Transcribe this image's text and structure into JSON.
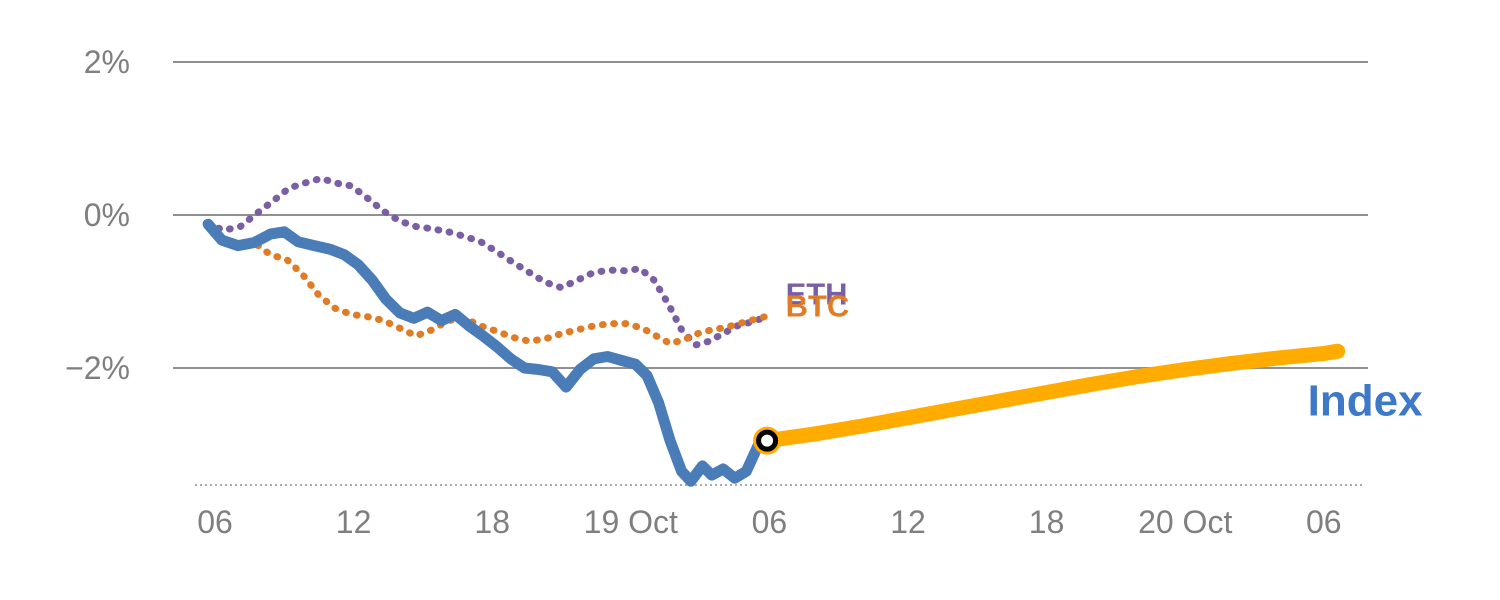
{
  "chart_data": {
    "type": "line",
    "title": "",
    "x_axis": {
      "unit": "hours",
      "range": [
        4.2,
        56
      ],
      "ticks": [
        {
          "value": 6,
          "label": "06"
        },
        {
          "value": 12,
          "label": "12"
        },
        {
          "value": 18,
          "label": "18"
        },
        {
          "value": 24,
          "label": "19 Oct"
        },
        {
          "value": 30,
          "label": "06"
        },
        {
          "value": 36,
          "label": "12"
        },
        {
          "value": 42,
          "label": "18"
        },
        {
          "value": 48,
          "label": "20 Oct"
        },
        {
          "value": 54,
          "label": "06"
        }
      ],
      "baseline_value": -3.53
    },
    "y_axis": {
      "unit": "%",
      "range": [
        -3.53,
        2.3
      ],
      "gridlines": [
        2,
        0,
        -2
      ],
      "ticks": [
        {
          "value": 2,
          "label": "2%"
        },
        {
          "value": 0,
          "label": "0%"
        },
        {
          "value": -2,
          "label": "−2%"
        }
      ]
    },
    "series": [
      {
        "name": "ETH",
        "color": "#7b5fa5",
        "style": "dotted",
        "width": 7,
        "points": [
          [
            5.7,
            -0.12
          ],
          [
            6.4,
            -0.2
          ],
          [
            7.1,
            -0.15
          ],
          [
            7.8,
            0.02
          ],
          [
            8.5,
            0.18
          ],
          [
            9.2,
            0.35
          ],
          [
            9.9,
            0.42
          ],
          [
            10.6,
            0.48
          ],
          [
            11.2,
            0.42
          ],
          [
            11.9,
            0.38
          ],
          [
            12.6,
            0.22
          ],
          [
            13.3,
            0.05
          ],
          [
            14.0,
            -0.08
          ],
          [
            14.7,
            -0.15
          ],
          [
            15.4,
            -0.18
          ],
          [
            16.1,
            -0.22
          ],
          [
            16.8,
            -0.28
          ],
          [
            17.5,
            -0.35
          ],
          [
            18.2,
            -0.48
          ],
          [
            18.9,
            -0.62
          ],
          [
            19.6,
            -0.75
          ],
          [
            20.3,
            -0.88
          ],
          [
            21.0,
            -0.95
          ],
          [
            21.7,
            -0.85
          ],
          [
            22.4,
            -0.75
          ],
          [
            23.1,
            -0.72
          ],
          [
            23.8,
            -0.73
          ],
          [
            24.4,
            -0.7
          ],
          [
            25.0,
            -0.85
          ],
          [
            25.6,
            -1.15
          ],
          [
            26.2,
            -1.5
          ],
          [
            26.8,
            -1.7
          ],
          [
            27.4,
            -1.65
          ],
          [
            28.0,
            -1.55
          ],
          [
            28.6,
            -1.45
          ],
          [
            29.2,
            -1.4
          ],
          [
            29.7,
            -1.35
          ]
        ]
      },
      {
        "name": "BTC",
        "color": "#e07c25",
        "style": "dotted",
        "width": 7,
        "points": [
          [
            5.7,
            -0.15
          ],
          [
            6.3,
            -0.32
          ],
          [
            7.0,
            -0.38
          ],
          [
            7.7,
            -0.36
          ],
          [
            8.4,
            -0.52
          ],
          [
            9.1,
            -0.58
          ],
          [
            9.8,
            -0.78
          ],
          [
            10.5,
            -1.05
          ],
          [
            11.2,
            -1.22
          ],
          [
            11.9,
            -1.3
          ],
          [
            12.6,
            -1.33
          ],
          [
            13.3,
            -1.38
          ],
          [
            14.0,
            -1.48
          ],
          [
            14.7,
            -1.58
          ],
          [
            15.4,
            -1.5
          ],
          [
            16.1,
            -1.38
          ],
          [
            16.8,
            -1.35
          ],
          [
            17.5,
            -1.45
          ],
          [
            18.2,
            -1.52
          ],
          [
            18.9,
            -1.6
          ],
          [
            19.6,
            -1.65
          ],
          [
            20.3,
            -1.62
          ],
          [
            21.0,
            -1.55
          ],
          [
            21.7,
            -1.5
          ],
          [
            22.4,
            -1.45
          ],
          [
            23.1,
            -1.42
          ],
          [
            23.8,
            -1.42
          ],
          [
            24.5,
            -1.48
          ],
          [
            25.1,
            -1.58
          ],
          [
            25.7,
            -1.68
          ],
          [
            26.3,
            -1.63
          ],
          [
            26.9,
            -1.55
          ],
          [
            27.5,
            -1.5
          ],
          [
            28.1,
            -1.47
          ],
          [
            28.7,
            -1.42
          ],
          [
            29.3,
            -1.37
          ],
          [
            29.8,
            -1.33
          ]
        ]
      },
      {
        "name": "Index",
        "color": "#4a7db8",
        "style": "solid",
        "width": 11,
        "points": [
          [
            5.7,
            -0.12
          ],
          [
            6.3,
            -0.33
          ],
          [
            7.0,
            -0.4
          ],
          [
            7.7,
            -0.36
          ],
          [
            8.4,
            -0.25
          ],
          [
            9.0,
            -0.22
          ],
          [
            9.6,
            -0.35
          ],
          [
            10.3,
            -0.4
          ],
          [
            11.0,
            -0.45
          ],
          [
            11.6,
            -0.52
          ],
          [
            12.2,
            -0.65
          ],
          [
            12.8,
            -0.85
          ],
          [
            13.4,
            -1.1
          ],
          [
            14.0,
            -1.28
          ],
          [
            14.6,
            -1.35
          ],
          [
            15.2,
            -1.27
          ],
          [
            15.8,
            -1.38
          ],
          [
            16.4,
            -1.3
          ],
          [
            17.0,
            -1.45
          ],
          [
            17.6,
            -1.58
          ],
          [
            18.2,
            -1.72
          ],
          [
            18.8,
            -1.88
          ],
          [
            19.4,
            -2.0
          ],
          [
            20.0,
            -2.02
          ],
          [
            20.6,
            -2.05
          ],
          [
            21.2,
            -2.25
          ],
          [
            21.8,
            -2.02
          ],
          [
            22.4,
            -1.88
          ],
          [
            23.0,
            -1.85
          ],
          [
            23.6,
            -1.9
          ],
          [
            24.2,
            -1.95
          ],
          [
            24.7,
            -2.1
          ],
          [
            25.2,
            -2.45
          ],
          [
            25.7,
            -2.95
          ],
          [
            26.2,
            -3.35
          ],
          [
            26.6,
            -3.48
          ],
          [
            27.1,
            -3.28
          ],
          [
            27.5,
            -3.4
          ],
          [
            28.0,
            -3.32
          ],
          [
            28.5,
            -3.44
          ],
          [
            29.0,
            -3.35
          ],
          [
            29.5,
            -3.02
          ],
          [
            29.9,
            -2.95
          ]
        ]
      },
      {
        "name": "Index forecast",
        "color": "#ffab00",
        "style": "solid",
        "width": 15,
        "points": [
          [
            29.9,
            -2.95
          ],
          [
            32,
            -2.86
          ],
          [
            34,
            -2.76
          ],
          [
            36,
            -2.65
          ],
          [
            38,
            -2.54
          ],
          [
            40,
            -2.43
          ],
          [
            42,
            -2.32
          ],
          [
            44,
            -2.21
          ],
          [
            46,
            -2.11
          ],
          [
            48,
            -2.02
          ],
          [
            50,
            -1.94
          ],
          [
            52,
            -1.87
          ],
          [
            54,
            -1.81
          ],
          [
            54.6,
            -1.78
          ]
        ]
      }
    ],
    "marker": {
      "x": 29.9,
      "y": -2.95,
      "outer_color": "#ffab00",
      "ring_color": "#000000",
      "fill": "#ffffff"
    },
    "labels": [
      {
        "text": "ETH",
        "color": "#7b5fa5",
        "x": 30.7,
        "y": -1.17,
        "size": 31,
        "weight": "bold"
      },
      {
        "text": "BTC",
        "color": "#e07c25",
        "x": 30.7,
        "y": -1.33,
        "size": 31,
        "weight": "bold"
      },
      {
        "text": "Index",
        "color": "#3e78c8",
        "x": 53.3,
        "y": -2.62,
        "size": 44,
        "weight": "bold"
      }
    ],
    "colors": {
      "gridline": "#909090",
      "axis_text": "#7f7f7f",
      "baseline": "#aaaaaa",
      "background": "#ffffff"
    }
  }
}
